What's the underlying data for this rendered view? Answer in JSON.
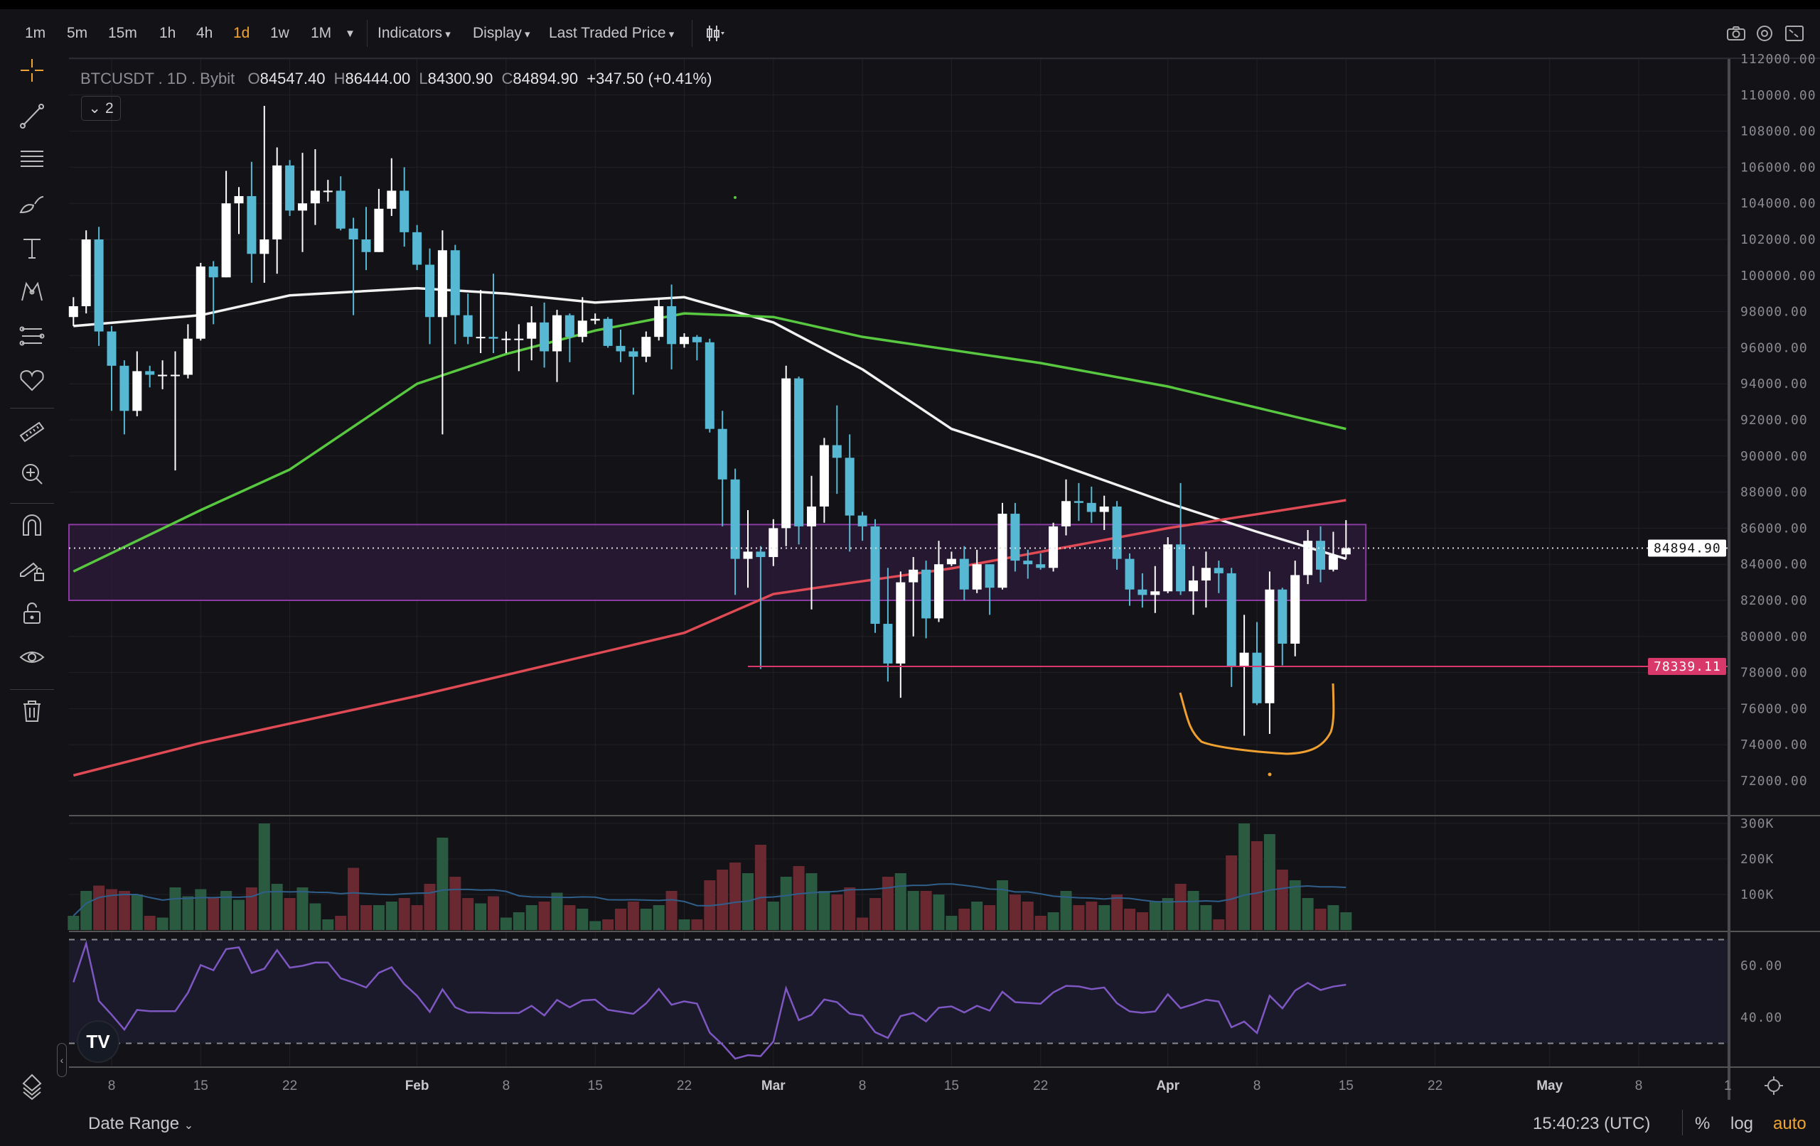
{
  "toolbar": {
    "timeframes": [
      "1m",
      "5m",
      "15m",
      "1h",
      "4h",
      "1d",
      "1w",
      "1M"
    ],
    "active_timeframe": "1d",
    "indicators_label": "Indicators",
    "display_label": "Display",
    "price_type_label": "Last Traded Price",
    "right_icons": [
      "camera-icon",
      "settings-icon",
      "fullscreen-icon"
    ]
  },
  "legend": {
    "symbol": "BTCUSDT . 1D . Bybit",
    "o_label": "O",
    "o": "84547.40",
    "h_label": "H",
    "h": "86444.00",
    "l_label": "L",
    "l": "84300.90",
    "c_label": "C",
    "c": "84894.90",
    "change": "+347.50 (+0.41%)",
    "collapsed_count": "2"
  },
  "left_tools": [
    "crosshair-icon",
    "trend-line-icon",
    "horizontal-lines-icon",
    "brush-icon",
    "text-icon",
    "pattern-icon",
    "fib-icon",
    "heart-icon",
    "ruler-icon",
    "zoom-in-icon",
    "magnet-icon",
    "lock-drawing-icon",
    "lock-icon",
    "eye-icon",
    "trash-icon",
    "layers-icon"
  ],
  "colors": {
    "background": "#131317",
    "up_candle": "#ffffff",
    "down_candle": "#56b8d3",
    "volume_up": "#2a5a40",
    "volume_down": "#6a2830",
    "ma_white": "#f2f2f2",
    "ma_green": "#58c840",
    "ma_red": "#e04a55",
    "zone_fill": "#2a1a35",
    "zone_border": "#8a3aa0",
    "level_line": "#d8386a",
    "rsi_line": "#7e57c2",
    "drawing_orange": "#f0a030",
    "accent": "#f0a530"
  },
  "chart_data": {
    "type": "candlestick",
    "x_start": "01-05",
    "candles_ohlc": [
      [
        97700,
        98800,
        97200,
        98300
      ],
      [
        98300,
        102500,
        97900,
        102000
      ],
      [
        102000,
        102700,
        96100,
        96900
      ],
      [
        96900,
        97200,
        92500,
        95000
      ],
      [
        95000,
        95300,
        91200,
        92500
      ],
      [
        92500,
        95800,
        92200,
        94700
      ],
      [
        94700,
        95000,
        93800,
        94500
      ],
      [
        94500,
        95300,
        93700,
        94500
      ],
      [
        94500,
        95800,
        89200,
        94500
      ],
      [
        94500,
        97300,
        94300,
        96500
      ],
      [
        96500,
        100700,
        96400,
        100500
      ],
      [
        100500,
        100800,
        97300,
        99900
      ],
      [
        99900,
        105800,
        99900,
        104000
      ],
      [
        104000,
        104900,
        102300,
        104400
      ],
      [
        104400,
        106300,
        99600,
        101200
      ],
      [
        101200,
        109400,
        99600,
        102000
      ],
      [
        102000,
        107100,
        100100,
        106100
      ],
      [
        106100,
        106400,
        103300,
        103600
      ],
      [
        103600,
        106800,
        101300,
        104000
      ],
      [
        104000,
        107000,
        102800,
        104700
      ],
      [
        104700,
        105300,
        104100,
        104700
      ],
      [
        104700,
        105500,
        102500,
        102600
      ],
      [
        102600,
        103200,
        97800,
        102000
      ],
      [
        102000,
        103800,
        100300,
        101300
      ],
      [
        101300,
        104800,
        101300,
        103700
      ],
      [
        103700,
        106500,
        103300,
        104700
      ],
      [
        104700,
        106000,
        101600,
        102400
      ],
      [
        102400,
        102800,
        100300,
        100600
      ],
      [
        100600,
        101500,
        96200,
        97700
      ],
      [
        97700,
        102500,
        91200,
        101400
      ],
      [
        101400,
        101700,
        96200,
        97800
      ],
      [
        97800,
        99000,
        96200,
        96600
      ],
      [
        96600,
        99200,
        95700,
        96600
      ],
      [
        96600,
        100100,
        95700,
        96500
      ],
      [
        96500,
        96900,
        95700,
        96500
      ],
      [
        96500,
        97300,
        94700,
        96500
      ],
      [
        96500,
        98300,
        95300,
        97400
      ],
      [
        97400,
        98500,
        94900,
        95800
      ],
      [
        95800,
        98100,
        94100,
        97800
      ],
      [
        97800,
        97900,
        95200,
        96600
      ],
      [
        96600,
        98800,
        96300,
        97500
      ],
      [
        97500,
        97900,
        97300,
        97600
      ],
      [
        97600,
        97700,
        96000,
        96100
      ],
      [
        96100,
        97000,
        95200,
        95800
      ],
      [
        95800,
        96000,
        93400,
        95500
      ],
      [
        95500,
        96900,
        95200,
        96600
      ],
      [
        96600,
        98700,
        96400,
        98300
      ],
      [
        98300,
        99500,
        94800,
        96200
      ],
      [
        96200,
        96800,
        96000,
        96600
      ],
      [
        96600,
        96700,
        95300,
        96300
      ],
      [
        96300,
        96500,
        91300,
        91500
      ],
      [
        91500,
        92500,
        86100,
        88700
      ],
      [
        88700,
        89300,
        82300,
        84300
      ],
      [
        84300,
        87000,
        82700,
        84700
      ],
      [
        84700,
        85000,
        78200,
        84400
      ],
      [
        84400,
        86500,
        83900,
        86000
      ],
      [
        86000,
        95000,
        85000,
        94300
      ],
      [
        94300,
        94400,
        85100,
        86100
      ],
      [
        86100,
        88900,
        81500,
        87200
      ],
      [
        87200,
        91000,
        86300,
        90600
      ],
      [
        90600,
        92800,
        87900,
        89900
      ],
      [
        89900,
        91200,
        84700,
        86700
      ],
      [
        86700,
        86900,
        85300,
        86100
      ],
      [
        86100,
        86500,
        80200,
        80700
      ],
      [
        80700,
        83800,
        77500,
        78500
      ],
      [
        78500,
        83600,
        76600,
        83000
      ],
      [
        83000,
        84400,
        80000,
        83700
      ],
      [
        83700,
        84200,
        79900,
        81000
      ],
      [
        81000,
        85300,
        80800,
        84000
      ],
      [
        84000,
        84700,
        83900,
        84300
      ],
      [
        84300,
        85000,
        82000,
        82600
      ],
      [
        82600,
        84800,
        82400,
        84000
      ],
      [
        84000,
        84000,
        81200,
        82700
      ],
      [
        82700,
        87400,
        82600,
        86800
      ],
      [
        86800,
        87400,
        83600,
        84200
      ],
      [
        84200,
        84800,
        83200,
        84000
      ],
      [
        84000,
        84600,
        83700,
        83800
      ],
      [
        83800,
        86300,
        83600,
        86100
      ],
      [
        86100,
        88700,
        85600,
        87500
      ],
      [
        87500,
        88500,
        86400,
        87400
      ],
      [
        87400,
        88300,
        86300,
        86900
      ],
      [
        86900,
        87800,
        85900,
        87200
      ],
      [
        87200,
        87500,
        83700,
        84300
      ],
      [
        84300,
        84600,
        81700,
        82600
      ],
      [
        82600,
        83500,
        81600,
        82300
      ],
      [
        82300,
        83900,
        81300,
        82500
      ],
      [
        82500,
        85500,
        82400,
        85100
      ],
      [
        85100,
        88500,
        82300,
        82500
      ],
      [
        82500,
        83900,
        81200,
        83100
      ],
      [
        83100,
        84700,
        81600,
        83800
      ],
      [
        83800,
        84200,
        82400,
        83500
      ],
      [
        83500,
        83800,
        77200,
        78300
      ],
      [
        78300,
        81200,
        74500,
        79100
      ],
      [
        79100,
        80800,
        76200,
        76300
      ],
      [
        76300,
        83600,
        74600,
        82600
      ],
      [
        82600,
        82700,
        78400,
        79600
      ],
      [
        79600,
        84200,
        78900,
        83400
      ],
      [
        83400,
        85900,
        82900,
        85300
      ],
      [
        85300,
        86100,
        83000,
        83700
      ],
      [
        83700,
        85800,
        83600,
        84500
      ],
      [
        84547.4,
        86444,
        84300.9,
        84894.9
      ]
    ],
    "volume_k": [
      40,
      110,
      125,
      115,
      110,
      100,
      40,
      35,
      120,
      95,
      115,
      90,
      110,
      85,
      120,
      300,
      130,
      90,
      120,
      75,
      30,
      40,
      175,
      70,
      70,
      80,
      90,
      70,
      130,
      260,
      150,
      90,
      75,
      95,
      35,
      50,
      70,
      80,
      105,
      70,
      60,
      25,
      30,
      60,
      80,
      60,
      70,
      110,
      30,
      30,
      140,
      170,
      190,
      160,
      240,
      80,
      150,
      180,
      160,
      110,
      100,
      120,
      35,
      90,
      150,
      160,
      110,
      110,
      100,
      40,
      60,
      80,
      70,
      140,
      100,
      80,
      40,
      50,
      110,
      70,
      80,
      70,
      100,
      60,
      50,
      80,
      90,
      130,
      110,
      70,
      30,
      210,
      300,
      250,
      270,
      170,
      140,
      90,
      60,
      70,
      50
    ],
    "moving_averages": [
      {
        "color": "#f2f2f2",
        "points": [
          [
            "01-05",
            97200
          ],
          [
            "01-15",
            97800
          ],
          [
            "01-22",
            98900
          ],
          [
            "02-01",
            99300
          ],
          [
            "02-08",
            99000
          ],
          [
            "02-15",
            98500
          ],
          [
            "02-22",
            98800
          ],
          [
            "03-01",
            97400
          ],
          [
            "03-08",
            94800
          ],
          [
            "03-15",
            91500
          ],
          [
            "03-22",
            89900
          ],
          [
            "04-01",
            87400
          ],
          [
            "04-08",
            85800
          ],
          [
            "04-15",
            84300
          ]
        ]
      },
      {
        "color": "#58c840",
        "points": [
          [
            "01-05",
            83600
          ],
          [
            "01-15",
            87000
          ],
          [
            "01-22",
            89250
          ],
          [
            "02-01",
            94000
          ],
          [
            "02-08",
            95650
          ],
          [
            "02-15",
            96950
          ],
          [
            "02-22",
            97900
          ],
          [
            "03-01",
            97700
          ],
          [
            "03-08",
            96600
          ],
          [
            "03-22",
            95150
          ],
          [
            "04-01",
            93850
          ],
          [
            "04-15",
            91500
          ]
        ]
      },
      {
        "color": "#e04a55",
        "points": [
          [
            "01-05",
            72300
          ],
          [
            "01-15",
            74100
          ],
          [
            "02-01",
            76700
          ],
          [
            "02-22",
            80200
          ],
          [
            "03-01",
            82350
          ],
          [
            "03-15",
            83770
          ],
          [
            "04-01",
            86000
          ],
          [
            "04-15",
            87550
          ]
        ]
      }
    ],
    "zone": {
      "from": "01-05",
      "to": "04-16",
      "low": 82000,
      "high": 86200
    },
    "level": {
      "from": "02-27",
      "price": 78339.11,
      "label": "78339.11"
    },
    "last_price": {
      "price": 84894.9,
      "label": "84894.90"
    },
    "price_ticks": [
      "112000.00",
      "110000.00",
      "108000.00",
      "106000.00",
      "104000.00",
      "102000.00",
      "100000.00",
      "98000.00",
      "96000.00",
      "94000.00",
      "92000.00",
      "90000.00",
      "88000.00",
      "86000.00",
      "84000.00",
      "82000.00",
      "80000.00",
      "78000.00",
      "76000.00",
      "74000.00",
      "72000.00"
    ],
    "volume_ticks": [
      "300K",
      "200K",
      "100K"
    ],
    "rsi_ticks": [
      "60.00",
      "40.00"
    ],
    "rsi_bands": [
      30,
      70
    ],
    "time_ticks": [
      {
        "label": "8",
        "month": false
      },
      {
        "label": "15",
        "month": false
      },
      {
        "label": "22",
        "month": false
      },
      {
        "label": "Feb",
        "month": true
      },
      {
        "label": "8",
        "month": false
      },
      {
        "label": "15",
        "month": false
      },
      {
        "label": "22",
        "month": false
      },
      {
        "label": "Mar",
        "month": true
      },
      {
        "label": "8",
        "month": false
      },
      {
        "label": "15",
        "month": false
      },
      {
        "label": "22",
        "month": false
      },
      {
        "label": "Apr",
        "month": true
      },
      {
        "label": "8",
        "month": false
      },
      {
        "label": "15",
        "month": false
      },
      {
        "label": "22",
        "month": false
      },
      {
        "label": "May",
        "month": true
      },
      {
        "label": "8",
        "month": false
      },
      {
        "label": "1",
        "month": false
      }
    ],
    "ylim": [
      72000,
      112000
    ],
    "grid": true
  },
  "bottom": {
    "date_range_label": "Date Range",
    "time": "15:40:23 (UTC)",
    "percent_label": "%",
    "log_label": "log",
    "auto_label": "auto"
  }
}
